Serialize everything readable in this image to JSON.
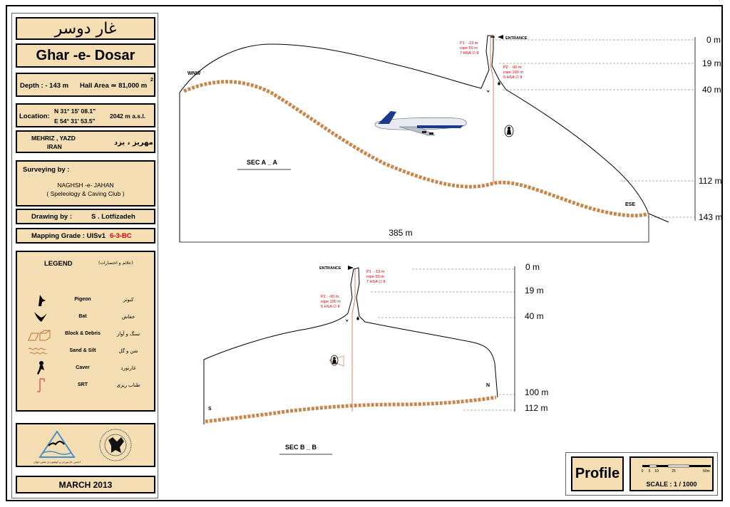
{
  "title_fa": "غار دوسر",
  "title_en": "Ghar -e- Dosar",
  "depth": "Depth : - 143 m",
  "hall_area": "Hall Area ≃ 81,000 m",
  "hall_area_sup": "2",
  "location_label": "Location:",
  "coord_n": "N 31° 15' 08.1\"",
  "coord_e": "E 54° 31' 53.5\"",
  "altitude": "2042 m a.s.l.",
  "region_en_1": "MEHRIZ , YAZD",
  "region_en_2": "IRAN",
  "region_fa": "مهریز ، یزد",
  "surveying_label": "Surveying by :",
  "surveyor_1": "NAGHSH -e- JAHAN",
  "surveyor_2": "( Speleology & Caving Club )",
  "drawing_label": "Drawing by :",
  "drawer": "S . Lotfizadeh",
  "grade_label": "Mapping Grade :  UISv1",
  "grade_value": "6-3-BC",
  "legend": {
    "title": "LEGEND",
    "title_fa": "(علائم و اختصارات)",
    "items": [
      {
        "en": "Pigeon",
        "fa": "کبوتر",
        "icon": "pigeon-icon"
      },
      {
        "en": "Bat",
        "fa": "خفاش",
        "icon": "bat-icon"
      },
      {
        "en": "Block & Debris",
        "fa": "سنگ و آوار",
        "icon": "block-debris-icon"
      },
      {
        "en": "Sand & Silt",
        "fa": "شن و گل",
        "icon": "sand-silt-icon"
      },
      {
        "en": "Caver",
        "fa": "غارنورد",
        "icon": "caver-icon"
      },
      {
        "en": "SRT",
        "fa": "طناب ریزی",
        "icon": "srt-icon"
      }
    ]
  },
  "logo_text": "انجمن غارنوردی و کوهنوردی نقش جهان",
  "date": "MARCH 2013",
  "view_type": "Profile",
  "scale": {
    "label": "SCALE : 1 / 1000",
    "ticks": [
      "0",
      "5",
      "10",
      "25",
      "50m"
    ]
  },
  "section_aa": {
    "label": "SEC  A _ A",
    "dir_left": "WNW",
    "dir_right": "ESE",
    "entrance": "ENTRANCE",
    "width": "385 m",
    "depths": [
      "0 m",
      "19 m",
      "40 m",
      "112 m",
      "143 m"
    ],
    "p1": [
      "P1 : -19 m",
      "rope 50 m",
      "7 HSA ∅ 8"
    ],
    "p2": [
      "P2 : -90 m",
      "rope 100 m",
      "5 HSA ∅ 8"
    ]
  },
  "section_bb": {
    "label": "SEC  B _ B",
    "dir_left": "S",
    "dir_right": "N",
    "entrance": "ENTRANCE",
    "depths": [
      "0 m",
      "19 m",
      "40 m",
      "100 m",
      "112 m"
    ],
    "p1": [
      "P1 : -19 m",
      "rope 50 m",
      "7 HSA ∅ 8"
    ],
    "p2": [
      "P2 : -90 m",
      "rope 100 m",
      "5 HSA ∅ 8"
    ]
  }
}
